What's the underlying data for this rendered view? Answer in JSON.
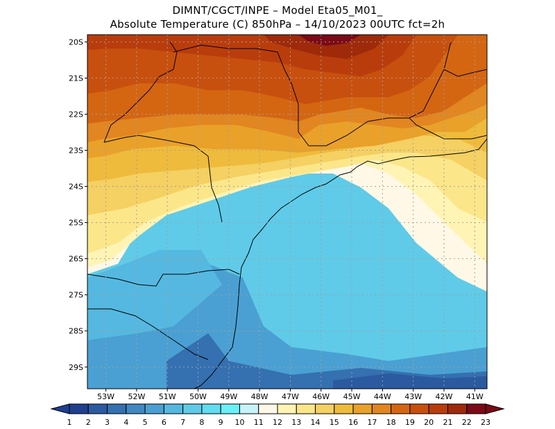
{
  "header": {
    "line1": "DIMNT/CGCT/INPE –  Model Eta05_M01_",
    "line2": "Absolute Temperature (C) 850hPa –  14/10/2023 00UTC fct=2h"
  },
  "map": {
    "variable": "Absolute Temperature (C) 850hPa",
    "lat_labels": [
      "20S",
      "21S",
      "22S",
      "23S",
      "24S",
      "25S",
      "26S",
      "27S",
      "28S",
      "29S"
    ],
    "lon_labels": [
      "53W",
      "52W",
      "51W",
      "50W",
      "49W",
      "48W",
      "47W",
      "46W",
      "45W",
      "44W",
      "43W",
      "42W",
      "41W"
    ],
    "lat_range": [
      -29.6,
      -19.8
    ],
    "lon_range": [
      -53.6,
      -40.6
    ]
  },
  "colorbar": {
    "labels": [
      "1",
      "2",
      "3",
      "4",
      "5",
      "6",
      "7",
      "8",
      "9",
      "10",
      "11",
      "12",
      "13",
      "14",
      "15",
      "16",
      "17",
      "18",
      "19",
      "20",
      "21",
      "22",
      "23"
    ],
    "colors": [
      "#1f3f8f",
      "#2b5aa0",
      "#3570b0",
      "#3f88c2",
      "#4aa0d2",
      "#55b8e0",
      "#5fcbe8",
      "#62dcf0",
      "#6af0f8",
      "#c8f2fa",
      "#fff8e6",
      "#fff4b4",
      "#fbe68a",
      "#f5d062",
      "#efbb3c",
      "#e9a12a",
      "#e18620",
      "#d46612",
      "#c8500e",
      "#b93d0c",
      "#9e2a0a",
      "#7a0a16"
    ]
  }
}
